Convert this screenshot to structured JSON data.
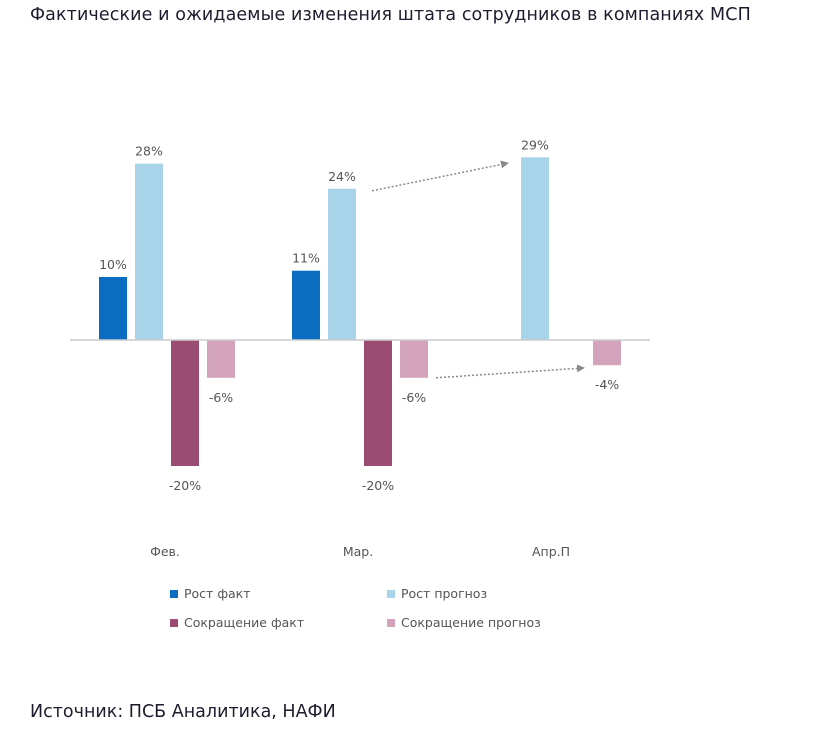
{
  "title": "Фактические и ожидаемые изменения штата сотрудников в компаниях МСП",
  "source": "Источник: ПСБ Аналитика, НАФИ",
  "colors": {
    "growth_fact": "#0a6dc2",
    "growth_forecast": "#a8d4ea",
    "cut_fact": "#9a4c72",
    "cut_forecast": "#d2a3bb",
    "axis": "#cccccc",
    "arrow": "#8a8a8a"
  },
  "chart_data": {
    "type": "bar",
    "title": "Фактические и ожидаемые изменения штата сотрудников в компаниях МСП",
    "categories": [
      "Фев.",
      "Мар.",
      "Апр.П"
    ],
    "series": [
      {
        "name": "Рост факт",
        "values": [
          10,
          11,
          null
        ],
        "labels": [
          "10%",
          "11%",
          ""
        ]
      },
      {
        "name": "Рост прогноз",
        "values": [
          28,
          24,
          29
        ],
        "labels": [
          "28%",
          "24%",
          "29%"
        ]
      },
      {
        "name": "Сокращение факт",
        "values": [
          -20,
          -20,
          null
        ],
        "labels": [
          "-20%",
          "-20%",
          ""
        ]
      },
      {
        "name": "Сокращение прогноз",
        "values": [
          -6,
          -6,
          -4
        ],
        "labels": [
          "-6%",
          "-6%",
          "-4%"
        ]
      }
    ],
    "ylim": [
      -20,
      29
    ],
    "grid": false,
    "legend_position": "bottom",
    "annotations": [
      {
        "type": "arrow",
        "from": "Мар. Рост прогноз",
        "to": "Апр.П Рост прогноз"
      },
      {
        "type": "arrow",
        "from": "Мар. Сокращение прогноз",
        "to": "Апр.П Сокращение прогноз"
      }
    ]
  },
  "legend": [
    {
      "label": "Рост факт",
      "color_key": "growth_fact"
    },
    {
      "label": "Рост прогноз",
      "color_key": "growth_forecast"
    },
    {
      "label": "Сокращение факт",
      "color_key": "cut_fact"
    },
    {
      "label": "Сокращение прогноз",
      "color_key": "cut_forecast"
    }
  ]
}
